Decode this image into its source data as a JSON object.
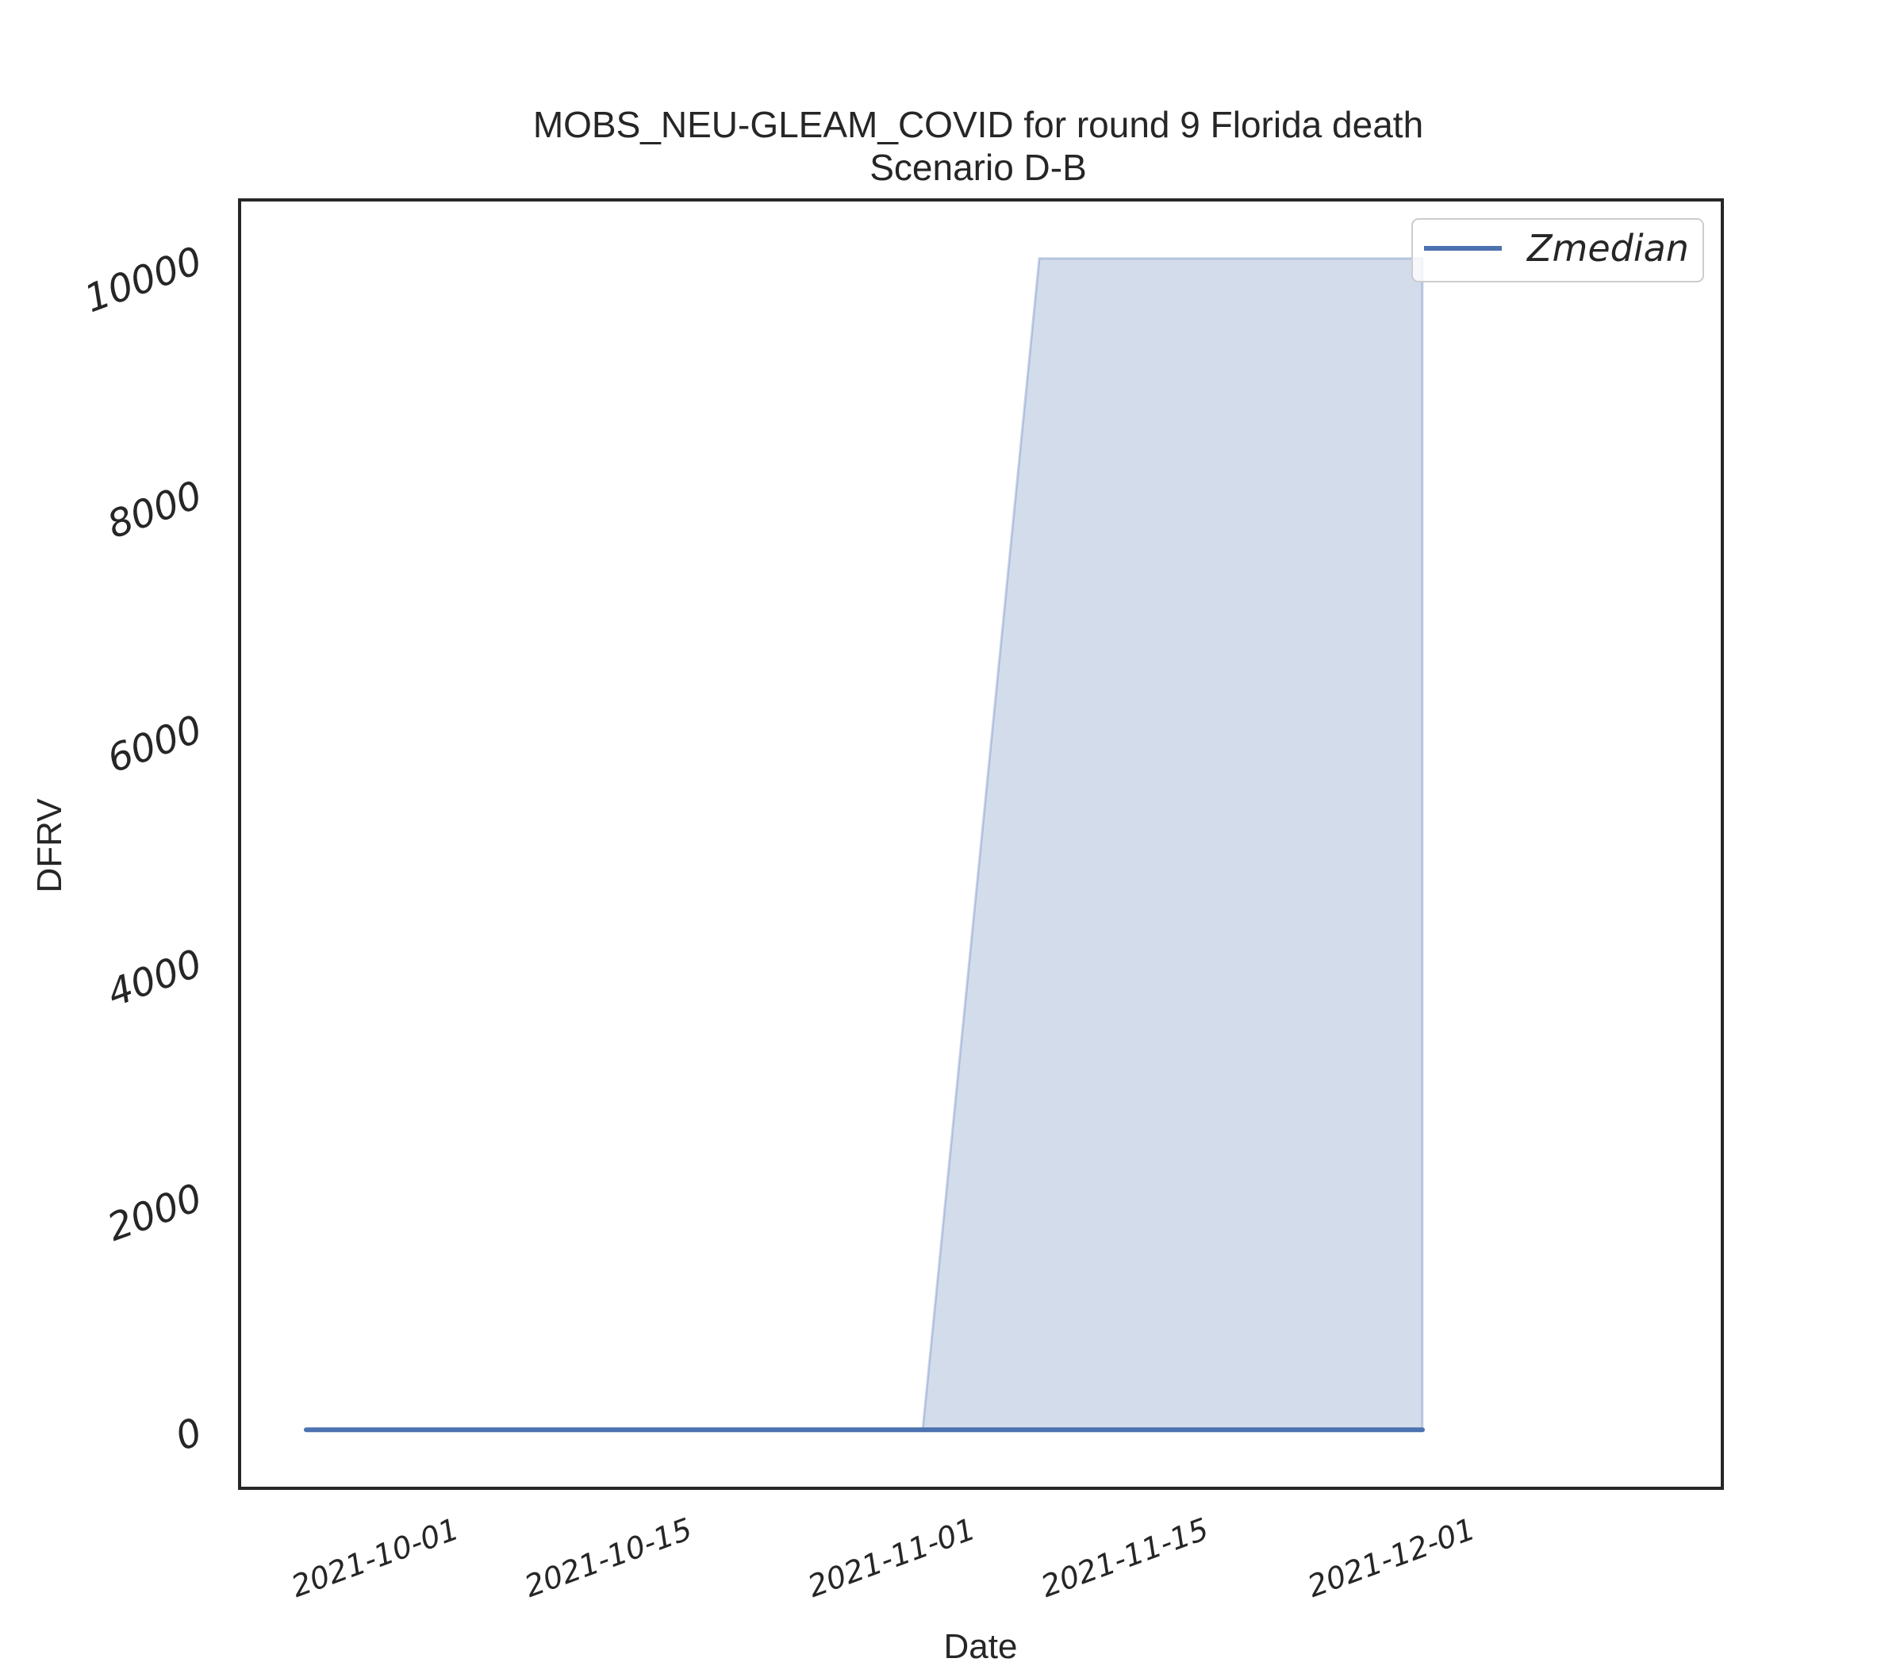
{
  "chart_data": {
    "type": "line",
    "title": "MOBS_NEU-GLEAM_COVID for round 9 Florida death",
    "subtitle": "Scenario D-B",
    "xlabel": "Date",
    "ylabel": "DFRV",
    "x_ticks": [
      "2021-10-01",
      "2021-10-15",
      "2021-11-01",
      "2021-11-15",
      "2021-12-01"
    ],
    "y_ticks": [
      0,
      2000,
      4000,
      6000,
      8000,
      10000
    ],
    "xlim": [
      "2021-09-18",
      "2021-12-16"
    ],
    "ylim": [
      -500,
      10500
    ],
    "legend": {
      "position": "top-right",
      "entries": [
        "Zmedian"
      ]
    },
    "grid": false,
    "series": [
      {
        "name": "Zmedian",
        "type": "line",
        "color": "#4c72b0",
        "x": [
          "2021-09-22",
          "2021-11-28"
        ],
        "y": [
          0,
          0
        ]
      }
    ],
    "band": {
      "color": "#4c72b0",
      "opacity": 0.25,
      "x": [
        "2021-09-22",
        "2021-10-29",
        "2021-11-05",
        "2021-11-28"
      ],
      "lower": [
        0,
        0,
        0,
        0
      ],
      "upper": [
        0,
        0,
        10000,
        10000
      ]
    }
  }
}
